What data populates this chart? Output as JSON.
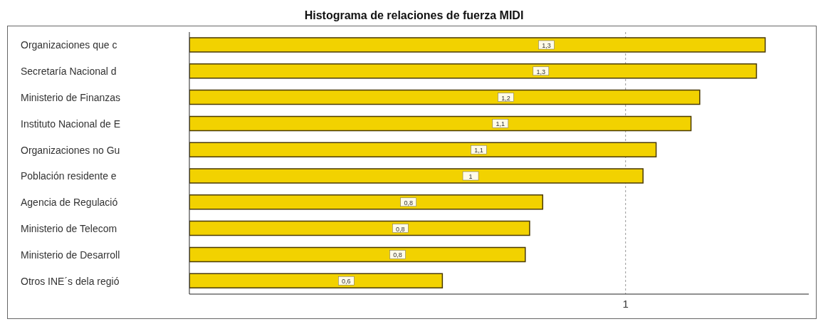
{
  "chart_data": {
    "type": "bar",
    "orientation": "horizontal",
    "title": "Histograma de relaciones de fuerza MIDI",
    "categories": [
      "Organizaciones que c",
      "Secretaría Nacional d",
      "Ministerio de Finanzas",
      "Instituto Nacional de E",
      "Organizaciones no Gu",
      "Población residente e",
      "Agencia de Regulació",
      "Ministerio de Telecom",
      "Ministerio de Desarroll",
      "Otros INE´s dela regió"
    ],
    "values": [
      1.32,
      1.3,
      1.17,
      1.15,
      1.07,
      1.04,
      0.81,
      0.78,
      0.77,
      0.58
    ],
    "value_labels": [
      "1,3",
      "1,3",
      "1,2",
      "1,1",
      "1,1",
      "1",
      "0,8",
      "0,8",
      "0,8",
      "0,6"
    ],
    "color": "#f2d200",
    "xlim": [
      0,
      1.42
    ],
    "xticks": [
      1
    ],
    "grid": "x"
  }
}
